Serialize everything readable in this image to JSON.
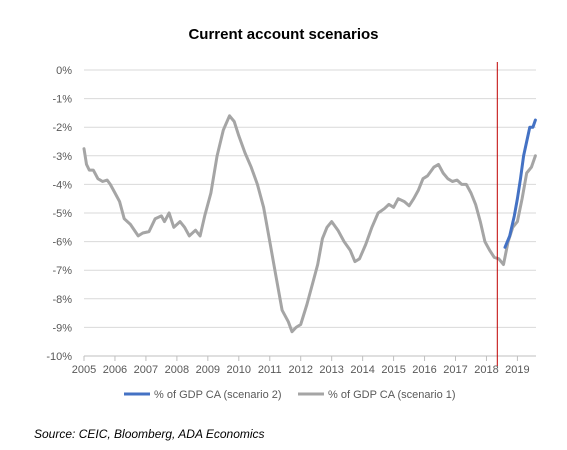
{
  "chart_data": {
    "type": "line",
    "title": "Current account scenarios",
    "xlabel": "",
    "ylabel": "",
    "xlim": [
      2005.0,
      2019.6
    ],
    "ylim": [
      -10,
      0
    ],
    "y_tick_labels": [
      "0%",
      "-1%",
      "-2%",
      "-3%",
      "-4%",
      "-5%",
      "-6%",
      "-7%",
      "-8%",
      "-9%",
      "-10%"
    ],
    "x_tick_labels": [
      "2005",
      "2006",
      "2007",
      "2008",
      "2009",
      "2010",
      "2011",
      "2012",
      "2013",
      "2014",
      "2015",
      "2016",
      "2017",
      "2018",
      "2019"
    ],
    "grid": "horizontal",
    "legend_position": "bottom",
    "vertical_marker_x": 2018.35,
    "vertical_marker_color": "#c00000",
    "series": [
      {
        "name": "% of GDP CA (scenario 2)",
        "color": "#4472c4",
        "points": [
          [
            2018.6,
            -6.2
          ],
          [
            2018.75,
            -5.8
          ],
          [
            2018.9,
            -5.1
          ],
          [
            2019.0,
            -4.5
          ],
          [
            2019.1,
            -3.8
          ],
          [
            2019.2,
            -3.0
          ],
          [
            2019.3,
            -2.5
          ],
          [
            2019.4,
            -2.0
          ],
          [
            2019.5,
            -2.0
          ],
          [
            2019.58,
            -1.75
          ]
        ]
      },
      {
        "name": "% of GDP CA (scenario 1)",
        "color": "#a5a5a5",
        "points": [
          [
            2005.0,
            -2.75
          ],
          [
            2005.08,
            -3.3
          ],
          [
            2005.17,
            -3.5
          ],
          [
            2005.3,
            -3.5
          ],
          [
            2005.45,
            -3.8
          ],
          [
            2005.6,
            -3.9
          ],
          [
            2005.75,
            -3.85
          ],
          [
            2005.85,
            -4.0
          ],
          [
            2006.0,
            -4.3
          ],
          [
            2006.15,
            -4.6
          ],
          [
            2006.3,
            -5.2
          ],
          [
            2006.5,
            -5.4
          ],
          [
            2006.75,
            -5.8
          ],
          [
            2006.9,
            -5.7
          ],
          [
            2007.1,
            -5.65
          ],
          [
            2007.3,
            -5.2
          ],
          [
            2007.5,
            -5.1
          ],
          [
            2007.6,
            -5.3
          ],
          [
            2007.75,
            -5.0
          ],
          [
            2007.9,
            -5.5
          ],
          [
            2008.1,
            -5.3
          ],
          [
            2008.25,
            -5.5
          ],
          [
            2008.4,
            -5.8
          ],
          [
            2008.6,
            -5.6
          ],
          [
            2008.75,
            -5.8
          ],
          [
            2008.9,
            -5.1
          ],
          [
            2009.1,
            -4.3
          ],
          [
            2009.3,
            -3.0
          ],
          [
            2009.5,
            -2.1
          ],
          [
            2009.7,
            -1.6
          ],
          [
            2009.85,
            -1.8
          ],
          [
            2010.0,
            -2.3
          ],
          [
            2010.2,
            -2.9
          ],
          [
            2010.4,
            -3.4
          ],
          [
            2010.6,
            -4.0
          ],
          [
            2010.8,
            -4.8
          ],
          [
            2011.0,
            -6.0
          ],
          [
            2011.2,
            -7.2
          ],
          [
            2011.4,
            -8.4
          ],
          [
            2011.6,
            -8.8
          ],
          [
            2011.72,
            -9.15
          ],
          [
            2011.85,
            -9.0
          ],
          [
            2012.0,
            -8.9
          ],
          [
            2012.2,
            -8.2
          ],
          [
            2012.4,
            -7.4
          ],
          [
            2012.55,
            -6.8
          ],
          [
            2012.7,
            -5.9
          ],
          [
            2012.85,
            -5.5
          ],
          [
            2013.0,
            -5.3
          ],
          [
            2013.2,
            -5.6
          ],
          [
            2013.4,
            -6.0
          ],
          [
            2013.6,
            -6.3
          ],
          [
            2013.75,
            -6.7
          ],
          [
            2013.9,
            -6.6
          ],
          [
            2014.1,
            -6.1
          ],
          [
            2014.3,
            -5.5
          ],
          [
            2014.5,
            -5.0
          ],
          [
            2014.7,
            -4.85
          ],
          [
            2014.85,
            -4.7
          ],
          [
            2015.0,
            -4.8
          ],
          [
            2015.15,
            -4.5
          ],
          [
            2015.35,
            -4.6
          ],
          [
            2015.5,
            -4.75
          ],
          [
            2015.65,
            -4.5
          ],
          [
            2015.8,
            -4.2
          ],
          [
            2015.95,
            -3.8
          ],
          [
            2016.1,
            -3.7
          ],
          [
            2016.3,
            -3.4
          ],
          [
            2016.45,
            -3.3
          ],
          [
            2016.6,
            -3.6
          ],
          [
            2016.75,
            -3.8
          ],
          [
            2016.9,
            -3.9
          ],
          [
            2017.05,
            -3.85
          ],
          [
            2017.2,
            -4.0
          ],
          [
            2017.35,
            -4.0
          ],
          [
            2017.5,
            -4.3
          ],
          [
            2017.65,
            -4.7
          ],
          [
            2017.8,
            -5.3
          ],
          [
            2017.95,
            -6.0
          ],
          [
            2018.1,
            -6.3
          ],
          [
            2018.25,
            -6.55
          ],
          [
            2018.4,
            -6.6
          ],
          [
            2018.55,
            -6.8
          ],
          [
            2018.7,
            -6.0
          ],
          [
            2018.85,
            -5.5
          ],
          [
            2019.0,
            -5.3
          ],
          [
            2019.15,
            -4.5
          ],
          [
            2019.3,
            -3.6
          ],
          [
            2019.45,
            -3.4
          ],
          [
            2019.58,
            -3.0
          ]
        ]
      }
    ]
  },
  "source": "Source: CEIC, Bloomberg, ADA Economics"
}
